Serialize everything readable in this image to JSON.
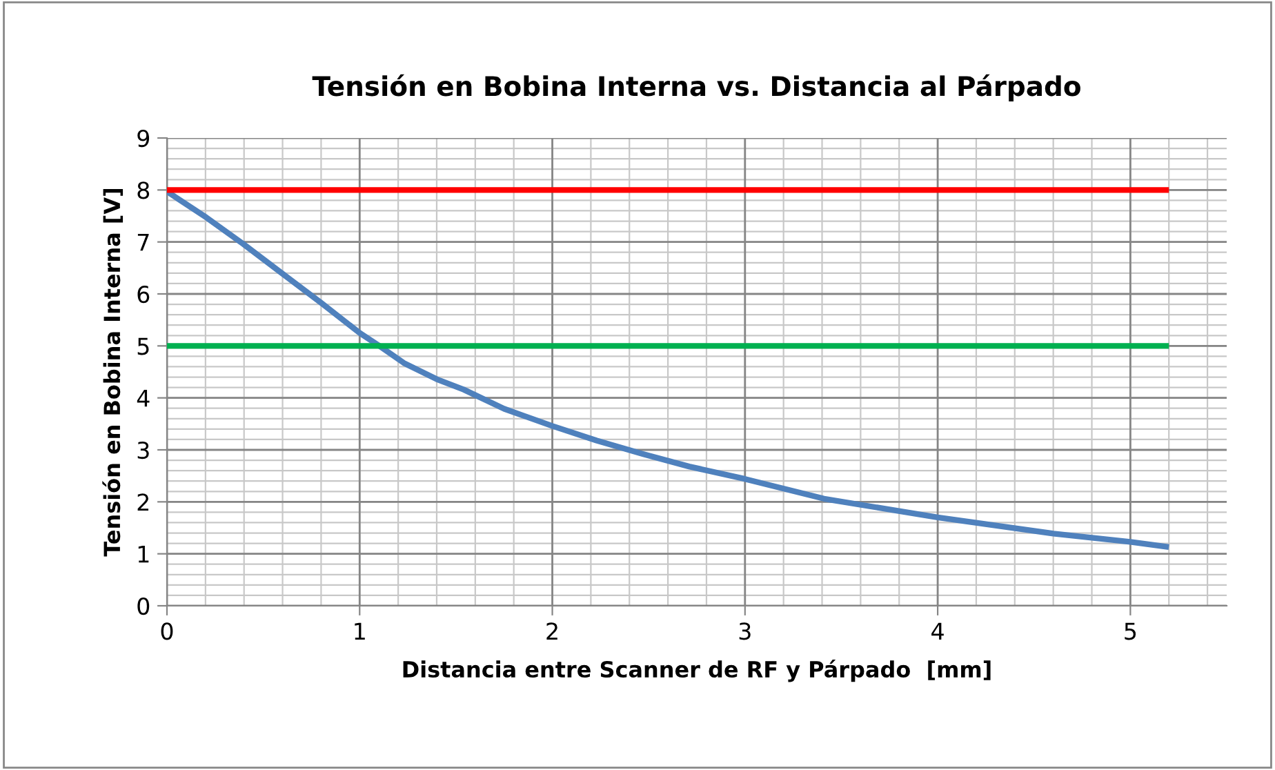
{
  "chart_data": {
    "type": "line",
    "title": "Tensión en Bobina Interna vs. Distancia al Párpado",
    "xlabel": "Distancia entre Scanner de RF y Párpado  [mm]",
    "ylabel": "Tensión en Bobina Interna [V]",
    "series": [
      {
        "color": "#4f81bd",
        "x": [
          0,
          0.205,
          0.396,
          0.61,
          0.8,
          1.0,
          1.11,
          1.23,
          1.4,
          1.54,
          1.75,
          2.0,
          2.23,
          2.47,
          2.71,
          3.0,
          3.41,
          4.0,
          4.6,
          5.0,
          5.2
        ],
        "values": [
          7.97,
          7.47,
          6.96,
          6.36,
          5.83,
          5.25,
          4.98,
          4.67,
          4.36,
          4.16,
          3.79,
          3.46,
          3.18,
          2.92,
          2.68,
          2.44,
          2.06,
          1.7,
          1.39,
          1.23,
          1.13
        ]
      },
      {
        "color": "#ff0000",
        "x": [
          0,
          5.2
        ],
        "values": [
          8,
          8
        ]
      },
      {
        "color": "#00b050",
        "x": [
          0,
          5.2
        ],
        "values": [
          5,
          5
        ]
      }
    ],
    "xlim": [
      0,
      5.5
    ],
    "xticks": [
      0,
      1,
      2,
      3,
      4,
      5
    ],
    "ylim": [
      0,
      9
    ],
    "yticks": [
      0,
      1,
      2,
      3,
      4,
      5,
      6,
      7,
      8,
      9
    ],
    "grid": true,
    "legend": false,
    "marker": "none",
    "line_style": "solid"
  }
}
